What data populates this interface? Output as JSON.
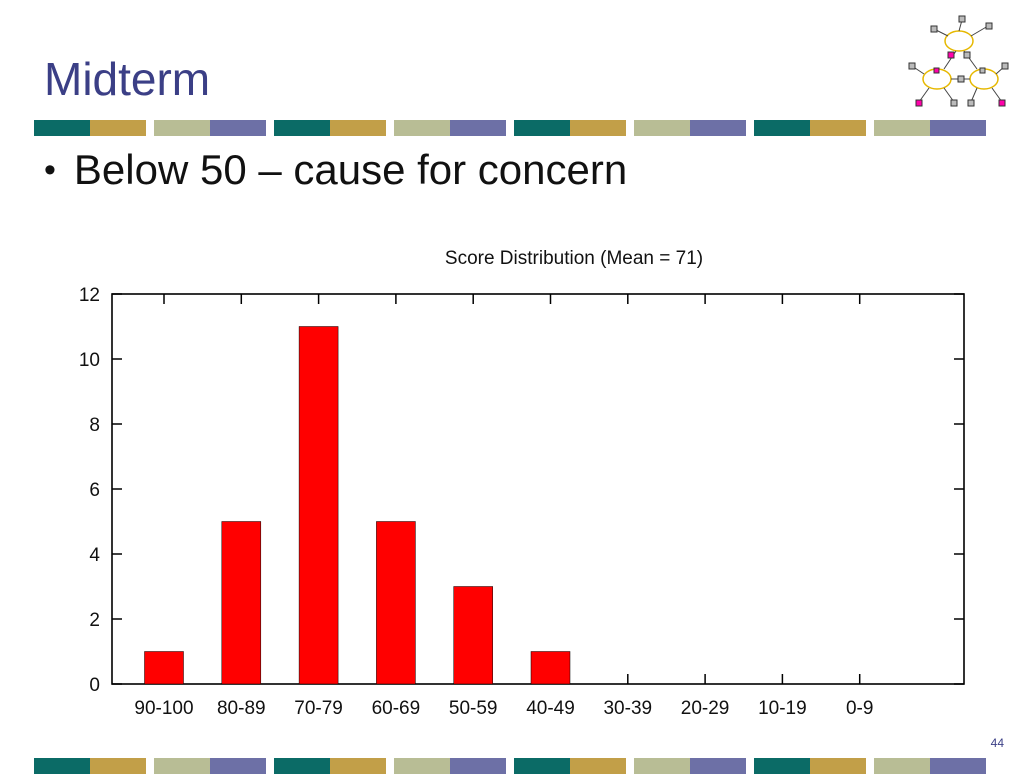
{
  "slide": {
    "title": "Midterm",
    "bullet": "Below 50 – cause for concern",
    "page_number": "44"
  },
  "colors": {
    "title": "#3b3f86",
    "stripe": [
      "#0b6b66",
      "#c29f48",
      "#b8bd95",
      "#6d70a6"
    ],
    "bar": "#ff0000"
  },
  "chart_data": {
    "type": "bar",
    "title": "Score Distribution (Mean = 71)",
    "categories": [
      "90-100",
      "80-89",
      "70-79",
      "60-69",
      "50-59",
      "40-49",
      "30-39",
      "20-29",
      "10-19",
      "0-9"
    ],
    "values": [
      1,
      5,
      11,
      5,
      3,
      1,
      0,
      0,
      0,
      0
    ],
    "xlabel": "",
    "ylabel": "",
    "ylim": [
      0,
      12
    ],
    "yticks": [
      0,
      2,
      4,
      6,
      8,
      10,
      12
    ],
    "grid": false,
    "legend": "none"
  }
}
